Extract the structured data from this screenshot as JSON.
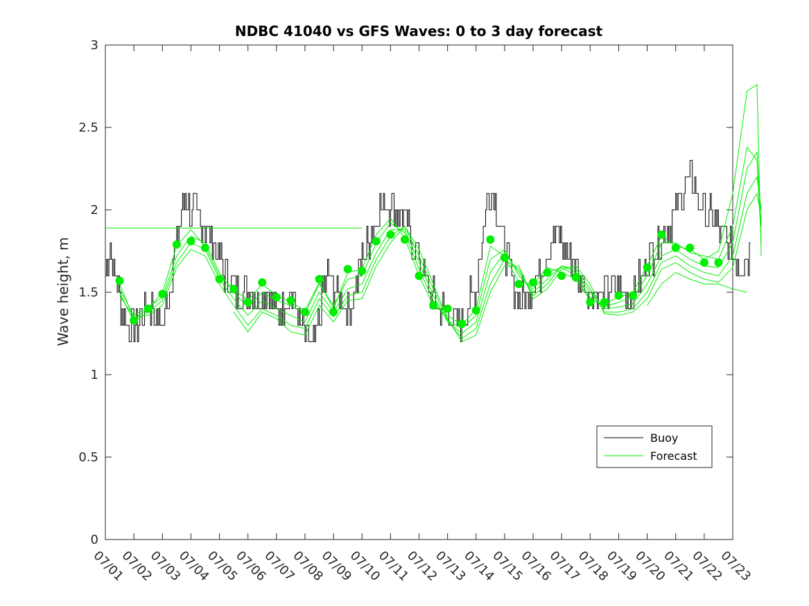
{
  "chart_data": {
    "type": "line",
    "title": "NDBC 41040 vs GFS Waves: 0 to 3 day forecast",
    "xlabel": "",
    "ylabel": "Wave height, m",
    "ylim": [
      0,
      3
    ],
    "xlim": [
      "07/01",
      "07/23"
    ],
    "yticks": [
      0,
      0.5,
      1,
      1.5,
      2,
      2.5,
      3
    ],
    "ytick_labels": [
      "0",
      "0.5",
      "1",
      "1.5",
      "2",
      "2.5",
      "3"
    ],
    "xtick_labels": [
      "07/01",
      "07/02",
      "07/03",
      "07/04",
      "07/05",
      "07/06",
      "07/07",
      "07/08",
      "07/09",
      "07/10",
      "07/11",
      "07/12",
      "07/13",
      "07/14",
      "07/15",
      "07/16",
      "07/17",
      "07/18",
      "07/19",
      "07/20",
      "07/21",
      "07/22",
      "07/23"
    ],
    "grid": false,
    "legend": {
      "placement": "bottom-right",
      "entries": [
        "Buoy",
        "Forecast"
      ]
    },
    "colors": {
      "buoy": "#000000",
      "forecast": "#00ee00",
      "markers": "#00ee00"
    },
    "buoy_anchors": {
      "day": [
        0.0,
        0.15,
        0.3,
        0.45,
        0.6,
        0.8,
        1.0,
        1.2,
        1.4,
        1.6,
        1.8,
        2.0,
        2.2,
        2.4,
        2.6,
        2.8,
        3.0,
        3.2,
        3.4,
        3.6,
        3.8,
        4.0,
        4.2,
        4.4,
        4.6,
        4.8,
        5.0,
        5.2,
        5.4,
        5.6,
        5.8,
        6.0,
        6.2,
        6.4,
        6.6,
        6.8,
        7.0,
        7.2,
        7.4,
        7.6,
        7.8,
        8.0,
        8.2,
        8.4,
        8.6,
        8.8,
        9.0,
        9.2,
        9.4,
        9.6,
        9.8,
        10.0,
        10.2,
        10.4,
        10.6,
        10.8,
        11.0,
        11.2,
        11.4,
        11.6,
        11.8,
        12.0,
        12.2,
        12.4,
        12.6,
        12.8,
        13.0,
        13.2,
        13.4,
        13.6,
        13.8,
        14.0,
        14.2,
        14.4,
        14.6,
        14.8,
        15.0,
        15.2,
        15.4,
        15.6,
        15.8,
        16.0,
        16.2,
        16.4,
        16.6,
        16.8,
        17.0,
        17.2,
        17.4,
        17.6,
        17.8,
        18.0,
        18.2,
        18.4,
        18.6,
        18.8,
        19.0,
        19.2,
        19.4,
        19.6,
        19.8,
        20.0,
        20.2,
        20.4,
        20.6,
        20.8,
        21.0,
        21.2,
        21.4,
        21.6,
        21.8,
        22.0,
        22.2,
        22.4,
        22.6,
        22.8
      ],
      "value": [
        1.6,
        1.8,
        1.65,
        1.5,
        1.4,
        1.3,
        1.25,
        1.35,
        1.45,
        1.4,
        1.35,
        1.3,
        1.5,
        1.7,
        1.9,
        2.1,
        2.0,
        1.95,
        1.9,
        1.9,
        1.8,
        1.7,
        1.6,
        1.55,
        1.5,
        1.55,
        1.5,
        1.5,
        1.45,
        1.5,
        1.45,
        1.4,
        1.4,
        1.5,
        1.45,
        1.3,
        1.25,
        1.15,
        1.2,
        1.5,
        1.6,
        1.5,
        1.45,
        1.4,
        1.45,
        1.55,
        1.7,
        1.8,
        1.9,
        2.0,
        2.05,
        2.05,
        2.0,
        1.95,
        1.9,
        1.8,
        1.7,
        1.6,
        1.5,
        1.45,
        1.4,
        1.35,
        1.35,
        1.3,
        1.35,
        1.45,
        1.55,
        1.8,
        2.05,
        2.15,
        1.9,
        1.75,
        1.6,
        1.5,
        1.45,
        1.5,
        1.55,
        1.6,
        1.7,
        1.8,
        1.85,
        1.8,
        1.75,
        1.7,
        1.6,
        1.55,
        1.5,
        1.5,
        1.45,
        1.5,
        1.55,
        1.55,
        1.5,
        1.45,
        1.5,
        1.6,
        1.7,
        1.75,
        1.8,
        1.85,
        1.9,
        2.0,
        2.1,
        2.2,
        2.15,
        2.05,
        2.0,
        1.95,
        1.9,
        1.85,
        1.8,
        1.75,
        1.7,
        1.7,
        1.75
      ]
    },
    "forecast_markers": {
      "day": [
        0.5,
        1.0,
        1.5,
        2.0,
        2.5,
        3.0,
        3.5,
        4.0,
        4.5,
        5.0,
        5.5,
        6.0,
        6.5,
        7.0,
        7.5,
        8.0,
        8.5,
        9.0,
        9.5,
        10.0,
        10.5,
        11.0,
        11.5,
        12.0,
        12.5,
        13.0,
        13.5,
        14.0,
        14.5,
        15.0,
        15.5,
        16.0,
        16.5,
        17.0,
        17.5,
        18.0,
        18.5,
        19.0,
        19.5,
        20.0,
        20.5,
        21.0,
        21.5
      ],
      "value": [
        1.57,
        1.33,
        1.4,
        1.49,
        1.79,
        1.81,
        1.77,
        1.58,
        1.52,
        1.44,
        1.56,
        1.47,
        1.45,
        1.38,
        1.58,
        1.38,
        1.64,
        1.63,
        1.81,
        1.85,
        1.82,
        1.6,
        1.42,
        1.4,
        1.31,
        1.39,
        1.82,
        1.71,
        1.55,
        1.56,
        1.62,
        1.6,
        1.59,
        1.44,
        1.44,
        1.48,
        1.48,
        1.65,
        1.85,
        1.77,
        1.77,
        1.68,
        1.68
      ]
    },
    "forecast_runs": [
      {
        "day": [
          0.5,
          1.0,
          1.5,
          2.0,
          2.5,
          3.0,
          3.5,
          4.0,
          4.5,
          5.0,
          5.5,
          6.0,
          6.5,
          7.0,
          7.5,
          8.0,
          8.5,
          9.0,
          9.5,
          10.0,
          10.5,
          11.0,
          11.5,
          12.0,
          12.5,
          13.0,
          13.5,
          14.0,
          14.5,
          15.0,
          15.5,
          16.0,
          16.5,
          17.0,
          17.5,
          18.0,
          18.5,
          19.0,
          19.5,
          20.0,
          20.5,
          21.0,
          21.5,
          22.0,
          22.5,
          22.85,
          23.0
        ],
        "value": [
          1.55,
          1.34,
          1.4,
          1.5,
          1.78,
          1.88,
          1.78,
          1.6,
          1.52,
          1.45,
          1.55,
          1.48,
          1.44,
          1.39,
          1.56,
          1.4,
          1.62,
          1.64,
          1.85,
          1.95,
          1.83,
          1.6,
          1.42,
          1.36,
          1.3,
          1.4,
          1.78,
          1.72,
          1.56,
          1.55,
          1.65,
          1.62,
          1.58,
          1.45,
          1.43,
          1.47,
          1.5,
          1.66,
          1.84,
          1.78,
          1.76,
          1.7,
          1.75,
          2.1,
          2.72,
          2.76,
          1.72
        ]
      },
      {
        "day": [
          0.5,
          1.0,
          1.5,
          2.0,
          2.5,
          3.0,
          3.5,
          4.0,
          4.5,
          5.0,
          5.5,
          6.0,
          6.5,
          7.0,
          7.5,
          8.0,
          8.5,
          9.0,
          9.5,
          10.0,
          10.5,
          11.0,
          11.5,
          12.0,
          12.5,
          13.0,
          13.5,
          14.0,
          14.5,
          15.0,
          15.5,
          16.0,
          16.5,
          17.0,
          17.5,
          18.0,
          18.5,
          19.0,
          19.5,
          20.0,
          20.5,
          21.0,
          21.5,
          22.0,
          22.5,
          22.85,
          23.0
        ],
        "value": [
          1.52,
          1.36,
          1.41,
          1.47,
          1.72,
          1.84,
          1.8,
          1.62,
          1.5,
          1.41,
          1.5,
          1.45,
          1.42,
          1.37,
          1.55,
          1.42,
          1.58,
          1.6,
          1.8,
          1.92,
          1.86,
          1.64,
          1.45,
          1.33,
          1.28,
          1.36,
          1.7,
          1.76,
          1.6,
          1.52,
          1.62,
          1.65,
          1.6,
          1.47,
          1.41,
          1.44,
          1.47,
          1.6,
          1.8,
          1.8,
          1.74,
          1.72,
          1.7,
          1.9,
          2.38,
          2.3,
          1.8
        ]
      },
      {
        "day": [
          0.5,
          1.0,
          1.5,
          2.0,
          2.5,
          3.0,
          3.5,
          4.0,
          4.5,
          5.0,
          5.5,
          6.0,
          6.5,
          7.0,
          7.5,
          8.0,
          8.5,
          9.0,
          9.5,
          10.0,
          10.5,
          11.0,
          11.5,
          12.0,
          12.5,
          13.0,
          13.5,
          14.0,
          14.5,
          15.0,
          15.5,
          16.0,
          16.5,
          17.0,
          17.5,
          18.0,
          18.5,
          19.0,
          19.5,
          20.0,
          20.5,
          21.0,
          21.5,
          22.0,
          22.5,
          22.85,
          23.0
        ],
        "value": [
          1.5,
          1.32,
          1.38,
          1.45,
          1.68,
          1.8,
          1.76,
          1.58,
          1.46,
          1.36,
          1.45,
          1.4,
          1.36,
          1.32,
          1.5,
          1.38,
          1.52,
          1.55,
          1.74,
          1.88,
          1.88,
          1.68,
          1.48,
          1.32,
          1.25,
          1.32,
          1.62,
          1.74,
          1.62,
          1.5,
          1.58,
          1.66,
          1.62,
          1.5,
          1.4,
          1.41,
          1.43,
          1.55,
          1.72,
          1.76,
          1.7,
          1.66,
          1.65,
          1.8,
          2.25,
          2.35,
          1.9
        ]
      },
      {
        "day": [
          0.5,
          1.0,
          1.5,
          2.0,
          2.5,
          3.0,
          3.5,
          4.0,
          4.5,
          5.0,
          5.5,
          6.0,
          6.5,
          7.0,
          7.5,
          8.0,
          8.5,
          9.0,
          9.5,
          10.0,
          10.5,
          11.0,
          11.5,
          12.0,
          12.5,
          13.0,
          13.5,
          14.0,
          14.5,
          15.0,
          15.5,
          16.0,
          16.5,
          17.0,
          17.5,
          18.0,
          18.5,
          19.0,
          19.5,
          20.0,
          20.5,
          21.0,
          21.5,
          22.0,
          22.5,
          22.85,
          23.0
        ],
        "value": [
          1.48,
          1.35,
          1.36,
          1.42,
          1.65,
          1.76,
          1.72,
          1.55,
          1.42,
          1.3,
          1.4,
          1.36,
          1.3,
          1.28,
          1.46,
          1.35,
          1.48,
          1.5,
          1.7,
          1.84,
          1.9,
          1.72,
          1.52,
          1.33,
          1.22,
          1.28,
          1.55,
          1.7,
          1.64,
          1.48,
          1.55,
          1.66,
          1.64,
          1.52,
          1.38,
          1.38,
          1.4,
          1.5,
          1.68,
          1.72,
          1.66,
          1.62,
          1.6,
          1.72,
          2.1,
          2.2,
          2.0
        ]
      },
      {
        "day": [
          4.5,
          5.0,
          5.5,
          6.0,
          6.5,
          7.0,
          7.5,
          8.0,
          8.5,
          9.0,
          9.5,
          10.0,
          10.5,
          11.0,
          11.5,
          12.0,
          12.5,
          13.0,
          13.5,
          14.0,
          14.5,
          15.0,
          15.5,
          16.0,
          16.5,
          17.0,
          17.5,
          18.0,
          18.5,
          19.0,
          19.5,
          20.0,
          20.5,
          21.0,
          21.5,
          22.0,
          22.5,
          22.85,
          23.0
        ],
        "value": [
          1.38,
          1.26,
          1.38,
          1.34,
          1.26,
          1.24,
          1.42,
          1.32,
          1.45,
          1.46,
          1.66,
          1.8,
          1.9,
          1.76,
          1.55,
          1.34,
          1.2,
          1.24,
          1.5,
          1.66,
          1.66,
          1.46,
          1.52,
          1.64,
          1.66,
          1.55,
          1.37,
          1.36,
          1.38,
          1.46,
          1.64,
          1.68,
          1.62,
          1.58,
          1.56,
          1.65,
          2.0,
          2.1,
          1.95
        ]
      },
      {
        "day": [
          19.0,
          19.5,
          20.0,
          20.5,
          21.0,
          21.5,
          22.0,
          22.5
        ],
        "value": [
          1.42,
          1.55,
          1.62,
          1.58,
          1.55,
          1.55,
          1.52,
          1.5
        ]
      },
      {
        "day": [
          0.0,
          9.0
        ],
        "value": [
          1.89,
          1.89
        ]
      }
    ]
  }
}
